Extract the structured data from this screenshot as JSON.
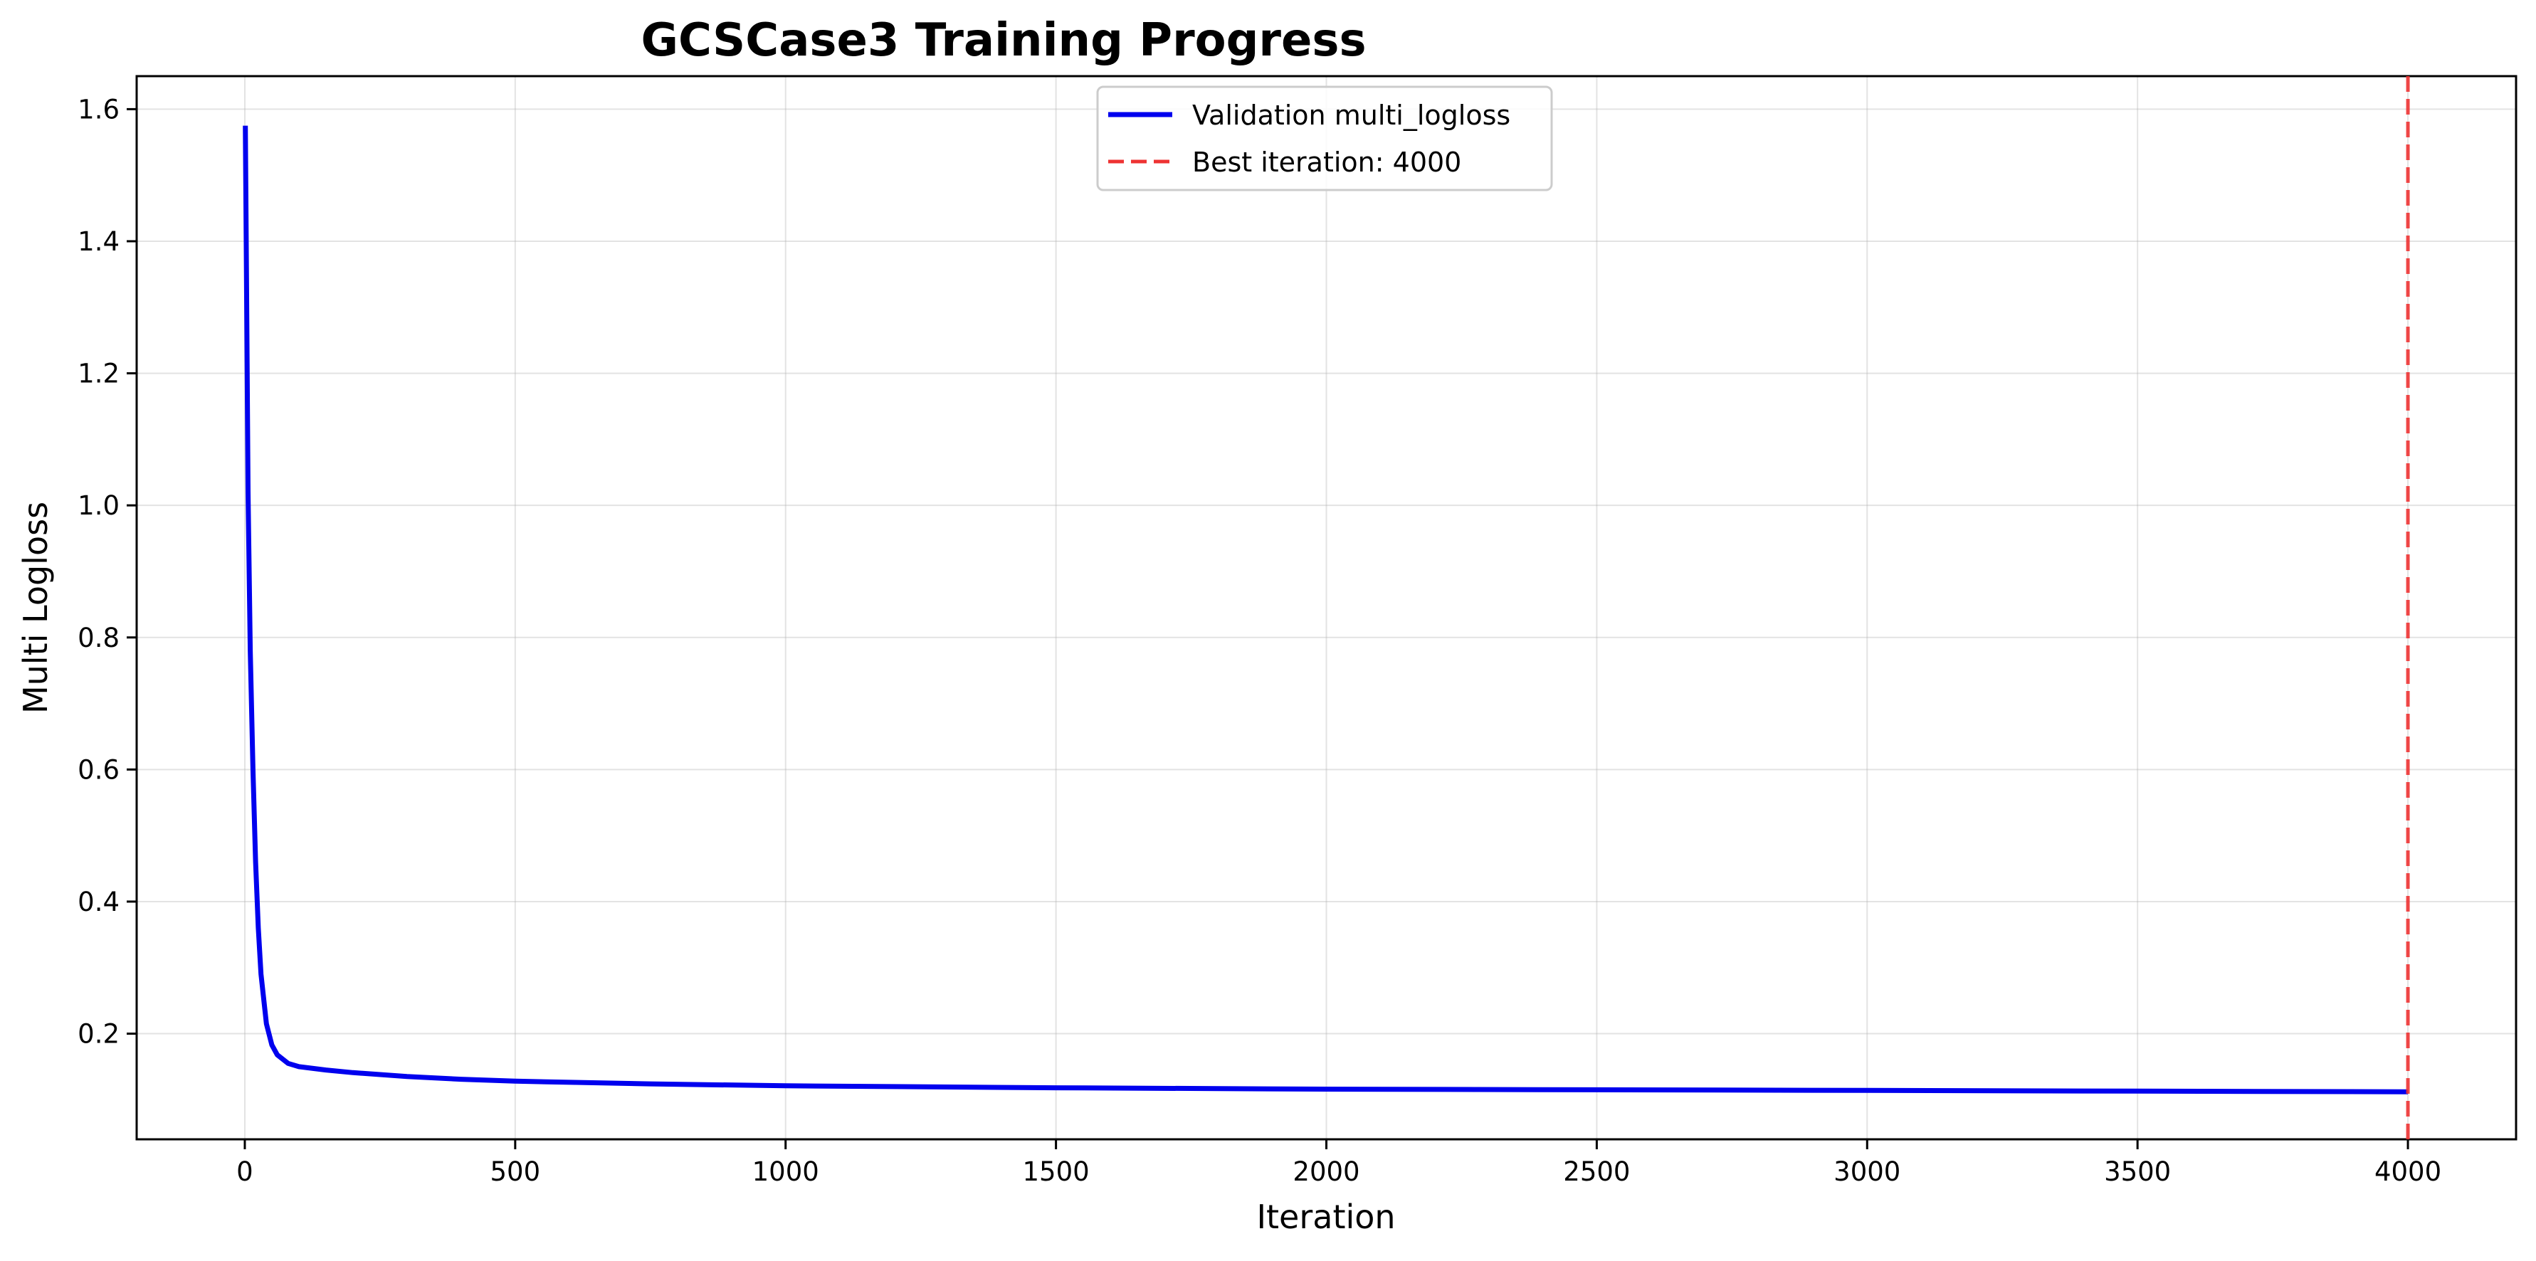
{
  "chart_data": {
    "type": "line",
    "title": "GCSCase3 Training Progress",
    "xlabel": "Iteration",
    "ylabel": "Multi Logloss",
    "xlim": [
      -200,
      4200
    ],
    "ylim": [
      0.04,
      1.65
    ],
    "xticks": [
      0,
      500,
      1000,
      1500,
      2000,
      2500,
      3000,
      3500,
      4000
    ],
    "yticks": [
      0.2,
      0.4,
      0.6,
      0.8,
      1.0,
      1.2,
      1.4,
      1.6
    ],
    "grid": true,
    "legend_position": "top-center",
    "series": [
      {
        "name": "Validation multi_logloss",
        "color": "#0000ee",
        "style": "solid",
        "x": [
          1,
          3,
          6,
          10,
          15,
          20,
          25,
          30,
          40,
          50,
          60,
          80,
          100,
          150,
          200,
          300,
          400,
          500,
          750,
          1000,
          1500,
          2000,
          2500,
          3000,
          3500,
          4000
        ],
        "y": [
          1.575,
          1.36,
          1.02,
          0.78,
          0.6,
          0.46,
          0.36,
          0.29,
          0.215,
          0.183,
          0.168,
          0.155,
          0.15,
          0.145,
          0.141,
          0.135,
          0.131,
          0.128,
          0.124,
          0.121,
          0.118,
          0.116,
          0.115,
          0.114,
          0.113,
          0.112
        ]
      }
    ],
    "annotations": [
      {
        "type": "vline",
        "x": 4000,
        "name": "Best iteration: 4000",
        "color": "#ee3333",
        "style": "dashed"
      }
    ]
  }
}
